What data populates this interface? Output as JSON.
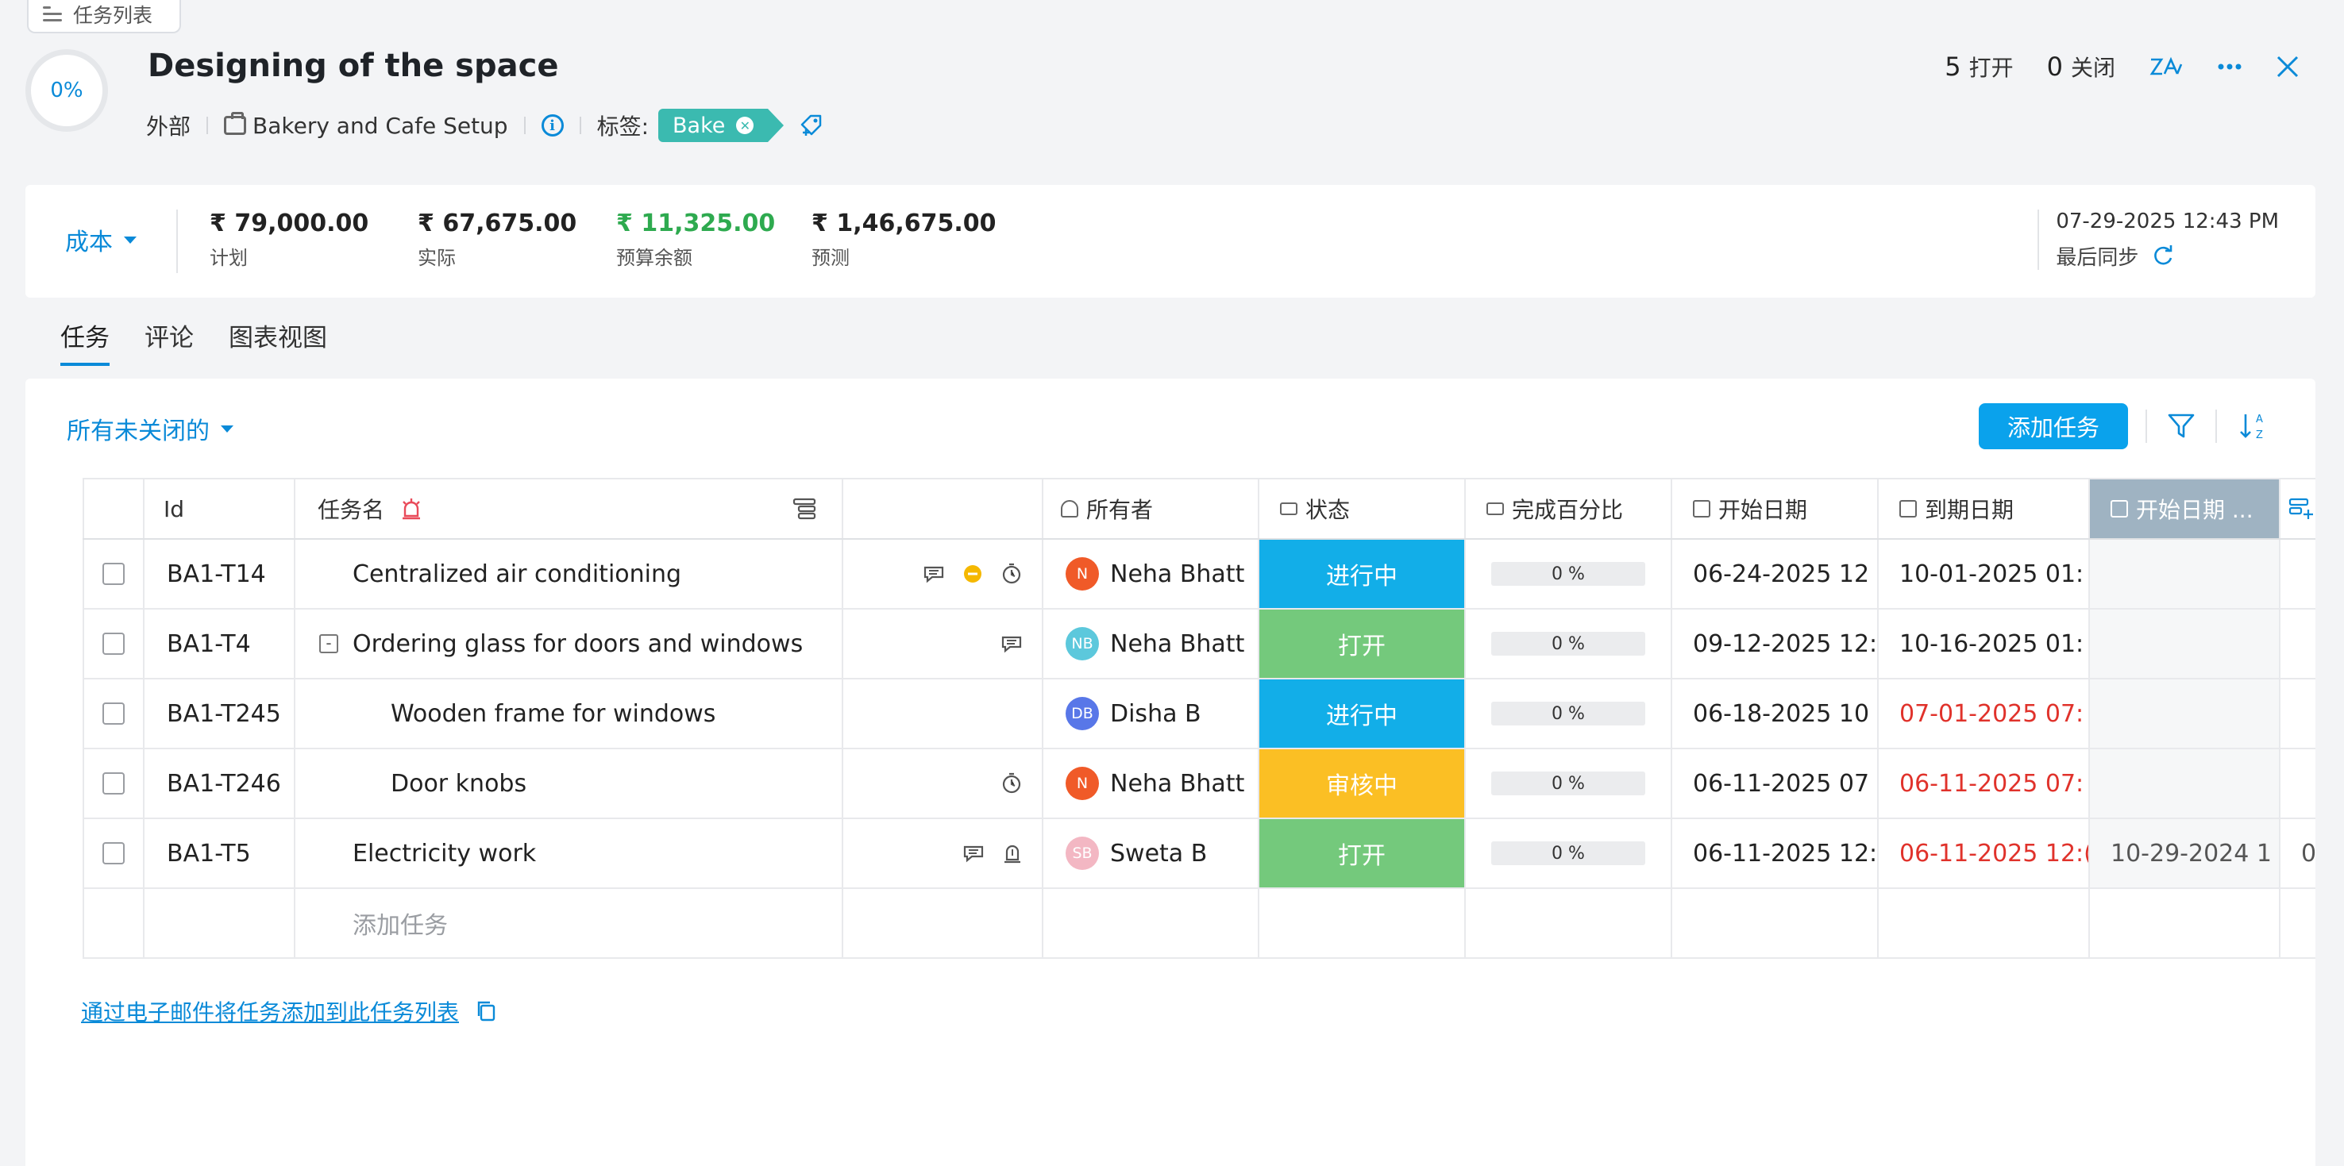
{
  "crumb": {
    "label": "任务列表"
  },
  "header": {
    "progress": "0%",
    "title": "Designing of the space",
    "scope": "外部",
    "project": "Bakery and Cafe Setup",
    "tag_label": "标签:",
    "tag": "Bake",
    "open_count": "5",
    "open_label": "打开",
    "closed_count": "0",
    "closed_label": "关闭"
  },
  "cost": {
    "selector": "成本",
    "items": [
      {
        "value": "₹ 79,000.00",
        "label": "计划"
      },
      {
        "value": "₹ 67,675.00",
        "label": "实际"
      },
      {
        "value": "₹ 11,325.00",
        "label": "预算余额"
      },
      {
        "value": "₹ 1,46,675.00",
        "label": "预测"
      }
    ],
    "sync_time": "07-29-2025 12:43 PM",
    "sync_label": "最后同步"
  },
  "tabs": [
    "任务",
    "评论",
    "图表视图"
  ],
  "filter": {
    "label": "所有未关闭的"
  },
  "toolbar": {
    "add_task": "添加任务"
  },
  "table": {
    "headers": {
      "id": "Id",
      "name": "任务名",
      "owner": "所有者",
      "status": "状态",
      "pct": "完成百分比",
      "start": "开始日期",
      "due": "到期日期",
      "start2": "开始日期 ..."
    },
    "rows": [
      {
        "id": "BA1-T14",
        "name": "Centralized air conditioning",
        "owner": "Neha Bhatt",
        "initials": "N",
        "avatar_color": "#f05a28",
        "status": "进行中",
        "status_color": "#12aee8",
        "pct": "0 %",
        "start": "06-24-2025 12",
        "due": "10-01-2025 01:",
        "due_red": false,
        "extra": "",
        "extra2": ""
      },
      {
        "id": "BA1-T4",
        "name": "Ordering glass for doors and windows",
        "owner": "Neha Bhatt",
        "initials": "NB",
        "avatar_color": "#5cc8dc",
        "status": "打开",
        "status_color": "#74c97c",
        "pct": "0 %",
        "start": "09-12-2025 12:",
        "due": "10-16-2025 01:",
        "due_red": false,
        "extra": "",
        "extra2": ""
      },
      {
        "id": "BA1-T245",
        "name": "Wooden frame for windows",
        "owner": "Disha B",
        "initials": "DB",
        "avatar_color": "#5877e8",
        "status": "进行中",
        "status_color": "#12aee8",
        "pct": "0 %",
        "start": "06-18-2025 10",
        "due": "07-01-2025 07:",
        "due_red": true,
        "extra": "",
        "extra2": ""
      },
      {
        "id": "BA1-T246",
        "name": "Door knobs",
        "owner": "Neha Bhatt",
        "initials": "N",
        "avatar_color": "#f05a28",
        "status": "审核中",
        "status_color": "#fbbf24",
        "pct": "0 %",
        "start": "06-11-2025 07",
        "due": "06-11-2025 07:",
        "due_red": true,
        "extra": "",
        "extra2": ""
      },
      {
        "id": "BA1-T5",
        "name": "Electricity work",
        "owner": "Sweta B",
        "initials": "SB",
        "avatar_color": "#f3b7c3",
        "status": "打开",
        "status_color": "#74c97c",
        "pct": "0 %",
        "start": "06-11-2025 12:",
        "due": "06-11-2025 12:(",
        "due_red": true,
        "extra": "10-29-2024 1",
        "extra2": "0"
      }
    ],
    "add_task_placeholder": "添加任务"
  },
  "email_link": "通过电子邮件将任务添加到此任务列表",
  "colors": {
    "accent": "#0a8ad8",
    "button": "#0aa2ec",
    "tag": "#3bbab0",
    "overdue": "#e0322b",
    "remaining": "#2eaa4f"
  }
}
